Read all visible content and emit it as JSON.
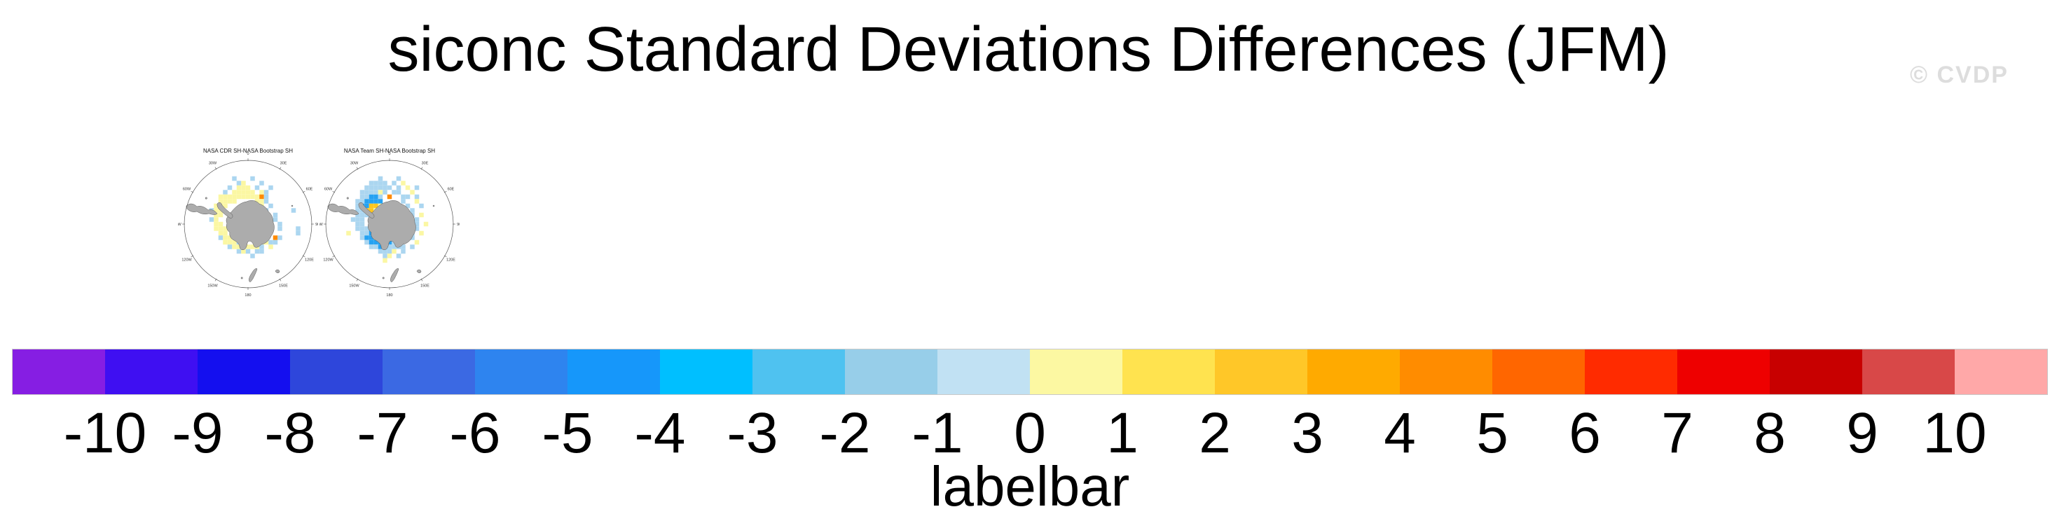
{
  "header": {
    "title": "siconc Standard Deviations Differences (JFM)",
    "watermark": "© CVDP"
  },
  "maps": [
    {
      "title": "NASA CDR SH-NASA Bootstrap SH",
      "lon_labels": [
        [
          "0",
          0
        ],
        [
          "30E",
          30
        ],
        [
          "60E",
          60
        ],
        [
          "90E",
          90
        ],
        [
          "120E",
          120
        ],
        [
          "150E",
          150
        ],
        [
          "180",
          180
        ],
        [
          "150W",
          210
        ],
        [
          "120W",
          240
        ],
        [
          "90W",
          270
        ],
        [
          "60W",
          300
        ],
        [
          "30W",
          330
        ]
      ],
      "cells": [
        [
          -3,
          -10,
          "L"
        ],
        [
          1,
          -10,
          "L"
        ],
        [
          -2,
          -9,
          "L"
        ],
        [
          -1,
          -9,
          "Y"
        ],
        [
          3,
          -9,
          "L"
        ],
        [
          -4,
          -8,
          "L"
        ],
        [
          -2,
          -8,
          "Y"
        ],
        [
          -1,
          -8,
          "Y"
        ],
        [
          0,
          -8,
          "Y"
        ],
        [
          2,
          -8,
          "L"
        ],
        [
          5,
          -8,
          "L"
        ],
        [
          -5,
          -7,
          "L"
        ],
        [
          -3,
          -7,
          "Y"
        ],
        [
          -2,
          -7,
          "Y"
        ],
        [
          -1,
          -7,
          "Y"
        ],
        [
          0,
          -7,
          "Y"
        ],
        [
          1,
          -7,
          "Y"
        ],
        [
          3,
          -7,
          "Y"
        ],
        [
          4,
          -7,
          "L"
        ],
        [
          -6,
          -6,
          "Y"
        ],
        [
          -5,
          -6,
          "Y"
        ],
        [
          -4,
          -6,
          "Y"
        ],
        [
          -3,
          -6,
          "Y"
        ],
        [
          -2,
          -6,
          "Y"
        ],
        [
          -1,
          -6,
          "Y"
        ],
        [
          0,
          -6,
          "Y"
        ],
        [
          1,
          -6,
          "Y"
        ],
        [
          2,
          -6,
          "Y"
        ],
        [
          3,
          -6,
          "O"
        ],
        [
          4,
          -6,
          "L"
        ],
        [
          -6,
          -5,
          "Y"
        ],
        [
          -5,
          -5,
          "Y"
        ],
        [
          -4,
          -5,
          "Y"
        ],
        [
          -3,
          -5,
          "Y"
        ],
        [
          2,
          -5,
          "Y"
        ],
        [
          3,
          -5,
          "Y"
        ],
        [
          4,
          -5,
          "L"
        ],
        [
          -7,
          -4,
          "Y"
        ],
        [
          -6,
          -4,
          "Y"
        ],
        [
          -5,
          -4,
          "Y"
        ],
        [
          3,
          -4,
          "Y"
        ],
        [
          5,
          -4,
          "L"
        ],
        [
          -8,
          -3,
          "L"
        ],
        [
          -7,
          -3,
          "Y"
        ],
        [
          -6,
          -3,
          "Y"
        ],
        [
          4,
          -3,
          "L"
        ],
        [
          10,
          -3,
          "L"
        ],
        [
          -7,
          -2,
          "Y"
        ],
        [
          -6,
          -2,
          "Y"
        ],
        [
          6,
          -2,
          "L"
        ],
        [
          -8,
          -1,
          "L"
        ],
        [
          -7,
          -1,
          "Y"
        ],
        [
          6,
          -1,
          "L"
        ],
        [
          -7,
          0,
          "Y"
        ],
        [
          -6,
          0,
          "Y"
        ],
        [
          7,
          0,
          "L"
        ],
        [
          -7,
          1,
          "Y"
        ],
        [
          -6,
          1,
          "Y"
        ],
        [
          -5,
          1,
          "Y"
        ],
        [
          7,
          1,
          "L"
        ],
        [
          11,
          1,
          "L"
        ],
        [
          -6,
          2,
          "Y"
        ],
        [
          -5,
          2,
          "Y"
        ],
        [
          11,
          2,
          "L"
        ],
        [
          -6,
          3,
          "L"
        ],
        [
          -5,
          3,
          "Y"
        ],
        [
          -4,
          3,
          "Y"
        ],
        [
          6,
          3,
          "O"
        ],
        [
          7,
          3,
          "L"
        ],
        [
          -5,
          4,
          "Y"
        ],
        [
          -4,
          4,
          "Y"
        ],
        [
          -3,
          4,
          "Y"
        ],
        [
          -2,
          4,
          "L"
        ],
        [
          3,
          4,
          "Y"
        ],
        [
          4,
          4,
          "Y"
        ],
        [
          5,
          4,
          "L"
        ],
        [
          6,
          4,
          "L"
        ],
        [
          -4,
          5,
          "L"
        ],
        [
          -3,
          5,
          "Y"
        ],
        [
          -2,
          5,
          "Y"
        ],
        [
          -1,
          5,
          "L"
        ],
        [
          0,
          5,
          "Y"
        ],
        [
          1,
          5,
          "Y"
        ],
        [
          2,
          5,
          "Y"
        ],
        [
          3,
          5,
          "L"
        ],
        [
          5,
          5,
          "Y"
        ],
        [
          -2,
          6,
          "L"
        ],
        [
          -1,
          6,
          "Y"
        ],
        [
          0,
          6,
          "L"
        ],
        [
          2,
          6,
          "L"
        ],
        [
          3,
          6,
          "L"
        ],
        [
          1,
          7,
          "L"
        ]
      ]
    },
    {
      "title": "NASA Team SH-NASA Bootstrap SH",
      "lon_labels": [
        [
          "0",
          0
        ],
        [
          "30E",
          30
        ],
        [
          "60E",
          60
        ],
        [
          "90E",
          90
        ],
        [
          "120E",
          120
        ],
        [
          "150E",
          150
        ],
        [
          "180",
          180
        ],
        [
          "150W",
          210
        ],
        [
          "120W",
          240
        ],
        [
          "90W",
          270
        ],
        [
          "60W",
          300
        ],
        [
          "30W",
          330
        ]
      ],
      "cells": [
        [
          -2,
          -10,
          "L"
        ],
        [
          2,
          -10,
          "L"
        ],
        [
          -4,
          -9,
          "L"
        ],
        [
          -3,
          -9,
          "L"
        ],
        [
          -2,
          -9,
          "L"
        ],
        [
          -1,
          -9,
          "L"
        ],
        [
          1,
          -9,
          "L"
        ],
        [
          3,
          -9,
          "Y"
        ],
        [
          -5,
          -8,
          "L"
        ],
        [
          -4,
          -8,
          "L"
        ],
        [
          -3,
          -8,
          "L"
        ],
        [
          -2,
          -8,
          "L"
        ],
        [
          -1,
          -8,
          "L"
        ],
        [
          0,
          -8,
          "L"
        ],
        [
          2,
          -8,
          "L"
        ],
        [
          4,
          -8,
          "Y"
        ],
        [
          6,
          -8,
          "L"
        ],
        [
          -6,
          -7,
          "L"
        ],
        [
          -5,
          -7,
          "L"
        ],
        [
          -4,
          -7,
          "L"
        ],
        [
          -3,
          -7,
          "L"
        ],
        [
          -2,
          -7,
          "Y"
        ],
        [
          -1,
          -7,
          "L"
        ],
        [
          1,
          -7,
          "L"
        ],
        [
          2,
          -7,
          "L"
        ],
        [
          5,
          -7,
          "Y"
        ],
        [
          -6,
          -6,
          "L"
        ],
        [
          -5,
          -6,
          "L"
        ],
        [
          -4,
          -6,
          "B"
        ],
        [
          -3,
          -6,
          "B"
        ],
        [
          -2,
          -6,
          "L"
        ],
        [
          0,
          -6,
          "O"
        ],
        [
          3,
          -6,
          "L"
        ],
        [
          4,
          -6,
          "L"
        ],
        [
          6,
          -6,
          "L"
        ],
        [
          -7,
          -5,
          "L"
        ],
        [
          -6,
          -5,
          "L"
        ],
        [
          -5,
          -5,
          "B"
        ],
        [
          -4,
          -5,
          "B"
        ],
        [
          -3,
          -5,
          "B"
        ],
        [
          -2,
          -5,
          "B"
        ],
        [
          3,
          -5,
          "L"
        ],
        [
          6,
          -5,
          "Y"
        ],
        [
          -7,
          -4,
          "L"
        ],
        [
          -6,
          -4,
          "B"
        ],
        [
          -5,
          -4,
          "B"
        ],
        [
          -4,
          -4,
          "G"
        ],
        [
          -3,
          -4,
          "G"
        ],
        [
          -2,
          -4,
          "Y"
        ],
        [
          4,
          -4,
          "L"
        ],
        [
          7,
          -4,
          "L"
        ],
        [
          -7,
          -3,
          "L"
        ],
        [
          -6,
          -3,
          "L"
        ],
        [
          -5,
          -3,
          "G"
        ],
        [
          -4,
          -3,
          "G"
        ],
        [
          -3,
          -3,
          "Y"
        ],
        [
          5,
          -3,
          "L"
        ],
        [
          -7,
          -2,
          "L"
        ],
        [
          -6,
          -2,
          "L"
        ],
        [
          -5,
          -2,
          "L"
        ],
        [
          5,
          -2,
          "L"
        ],
        [
          7,
          -2,
          "Y"
        ],
        [
          -8,
          -1,
          "L"
        ],
        [
          -7,
          -1,
          "L"
        ],
        [
          -6,
          -1,
          "L"
        ],
        [
          6,
          -1,
          "L"
        ],
        [
          -7,
          0,
          "L"
        ],
        [
          -6,
          0,
          "L"
        ],
        [
          6,
          0,
          "L"
        ],
        [
          8,
          0,
          "Y"
        ],
        [
          -7,
          1,
          "L"
        ],
        [
          -6,
          1,
          "L"
        ],
        [
          -5,
          1,
          "L"
        ],
        [
          -4,
          1,
          "B"
        ],
        [
          5,
          1,
          "L"
        ],
        [
          6,
          1,
          "L"
        ],
        [
          -9,
          2,
          "Y"
        ],
        [
          -6,
          2,
          "L"
        ],
        [
          -5,
          2,
          "L"
        ],
        [
          -4,
          2,
          "B"
        ],
        [
          -3,
          2,
          "B"
        ],
        [
          -2,
          2,
          "B"
        ],
        [
          5,
          2,
          "L"
        ],
        [
          7,
          2,
          "Y"
        ],
        [
          -6,
          3,
          "L"
        ],
        [
          -5,
          3,
          "B"
        ],
        [
          -4,
          3,
          "B"
        ],
        [
          -3,
          3,
          "C"
        ],
        [
          -2,
          3,
          "B"
        ],
        [
          -1,
          3,
          "B"
        ],
        [
          4,
          3,
          "L"
        ],
        [
          5,
          3,
          "L"
        ],
        [
          -5,
          4,
          "L"
        ],
        [
          -4,
          4,
          "B"
        ],
        [
          -3,
          4,
          "B"
        ],
        [
          -2,
          4,
          "B"
        ],
        [
          -1,
          4,
          "B"
        ],
        [
          0,
          4,
          "B"
        ],
        [
          1,
          4,
          "L"
        ],
        [
          2,
          4,
          "L"
        ],
        [
          6,
          4,
          "Y"
        ],
        [
          -4,
          5,
          "L"
        ],
        [
          -3,
          5,
          "L"
        ],
        [
          -2,
          5,
          "B"
        ],
        [
          -1,
          5,
          "B"
        ],
        [
          0,
          5,
          "L"
        ],
        [
          1,
          5,
          "L"
        ],
        [
          2,
          5,
          "L"
        ],
        [
          3,
          5,
          "L"
        ],
        [
          5,
          5,
          "L"
        ],
        [
          -2,
          6,
          "L"
        ],
        [
          -1,
          6,
          "L"
        ],
        [
          0,
          6,
          "L"
        ],
        [
          1,
          6,
          "Y"
        ],
        [
          3,
          6,
          "L"
        ],
        [
          -1,
          7,
          "L"
        ],
        [
          0,
          7,
          "Y"
        ],
        [
          2,
          7,
          "L"
        ],
        [
          -1,
          8,
          "Y"
        ]
      ]
    }
  ],
  "map_palette": {
    "Y": "#FBF7A3",
    "G": "#FFC61E",
    "O": "#FF8A00",
    "L": "#ABD6F0",
    "B": "#25A2F2",
    "C": "#00C3FA"
  },
  "labelbar": {
    "caption": "labelbar",
    "tick_labels": [
      "-10",
      "-9",
      "-8",
      "-7",
      "-6",
      "-5",
      "-4",
      "-3",
      "-2",
      "-1",
      "0",
      "1",
      "2",
      "3",
      "4",
      "5",
      "6",
      "7",
      "8",
      "9",
      "10"
    ],
    "colors": [
      "#861EE3",
      "#3F0FF2",
      "#140FEF",
      "#2E46DB",
      "#3B69E3",
      "#2E84EF",
      "#1697FA",
      "#00BFFF",
      "#4FC2F0",
      "#97CEE9",
      "#C1E1F3",
      "#FCF8A2",
      "#FFE34F",
      "#FFC728",
      "#FFAA00",
      "#FF8C00",
      "#FF6600",
      "#FF2B00",
      "#EE0000",
      "#C80000",
      "#D84848",
      "#FFA8A8"
    ]
  },
  "chart_data": [
    {
      "type": "heatmap",
      "subtype": "south-polar-stereographic-map",
      "title": "NASA CDR SH-NASA Bootstrap SH",
      "variable": "siconc standard deviation difference",
      "season": "JFM",
      "longitude_ticks": [
        "0",
        "30E",
        "60E",
        "90E",
        "120E",
        "150E",
        "180",
        "150W",
        "120W",
        "90W",
        "60W",
        "30W"
      ],
      "value_range": [
        -10,
        10
      ],
      "summary": "Ring of grid cells around Antarctica, mostly 0 to 1 (pale yellow) with scattered -1 to -2 (light blue) and two isolated 4 to 5 (orange) cells"
    },
    {
      "type": "heatmap",
      "subtype": "south-polar-stereographic-map",
      "title": "NASA Team SH-NASA Bootstrap SH",
      "variable": "siconc standard deviation difference",
      "season": "JFM",
      "longitude_ticks": [
        "0",
        "30E",
        "60E",
        "90E",
        "120E",
        "150E",
        "180",
        "150W",
        "120W",
        "90W",
        "60W",
        "30W"
      ],
      "value_range": [
        -10,
        10
      ],
      "summary": "Ring of grid cells around Antarctica, mostly -1 to -4 (light and medium blue) with a 2 to 3 (gold) patch near the Antarctic Peninsula, scattered 0 to 1 (pale yellow) and one orange cell"
    },
    {
      "type": "colorbar",
      "title": "labelbar",
      "levels": [
        -10,
        -9,
        -8,
        -7,
        -6,
        -5,
        -4,
        -3,
        -2,
        -1,
        0,
        1,
        2,
        3,
        4,
        5,
        6,
        7,
        8,
        9,
        10
      ],
      "colors": [
        "#861EE3",
        "#3F0FF2",
        "#140FEF",
        "#2E46DB",
        "#3B69E3",
        "#2E84EF",
        "#1697FA",
        "#00BFFF",
        "#4FC2F0",
        "#97CEE9",
        "#C1E1F3",
        "#FCF8A2",
        "#FFE34F",
        "#FFC728",
        "#FFAA00",
        "#FF8C00",
        "#FF6600",
        "#FF2B00",
        "#EE0000",
        "#C80000",
        "#D84848",
        "#FFA8A8"
      ],
      "orientation": "horizontal"
    }
  ]
}
